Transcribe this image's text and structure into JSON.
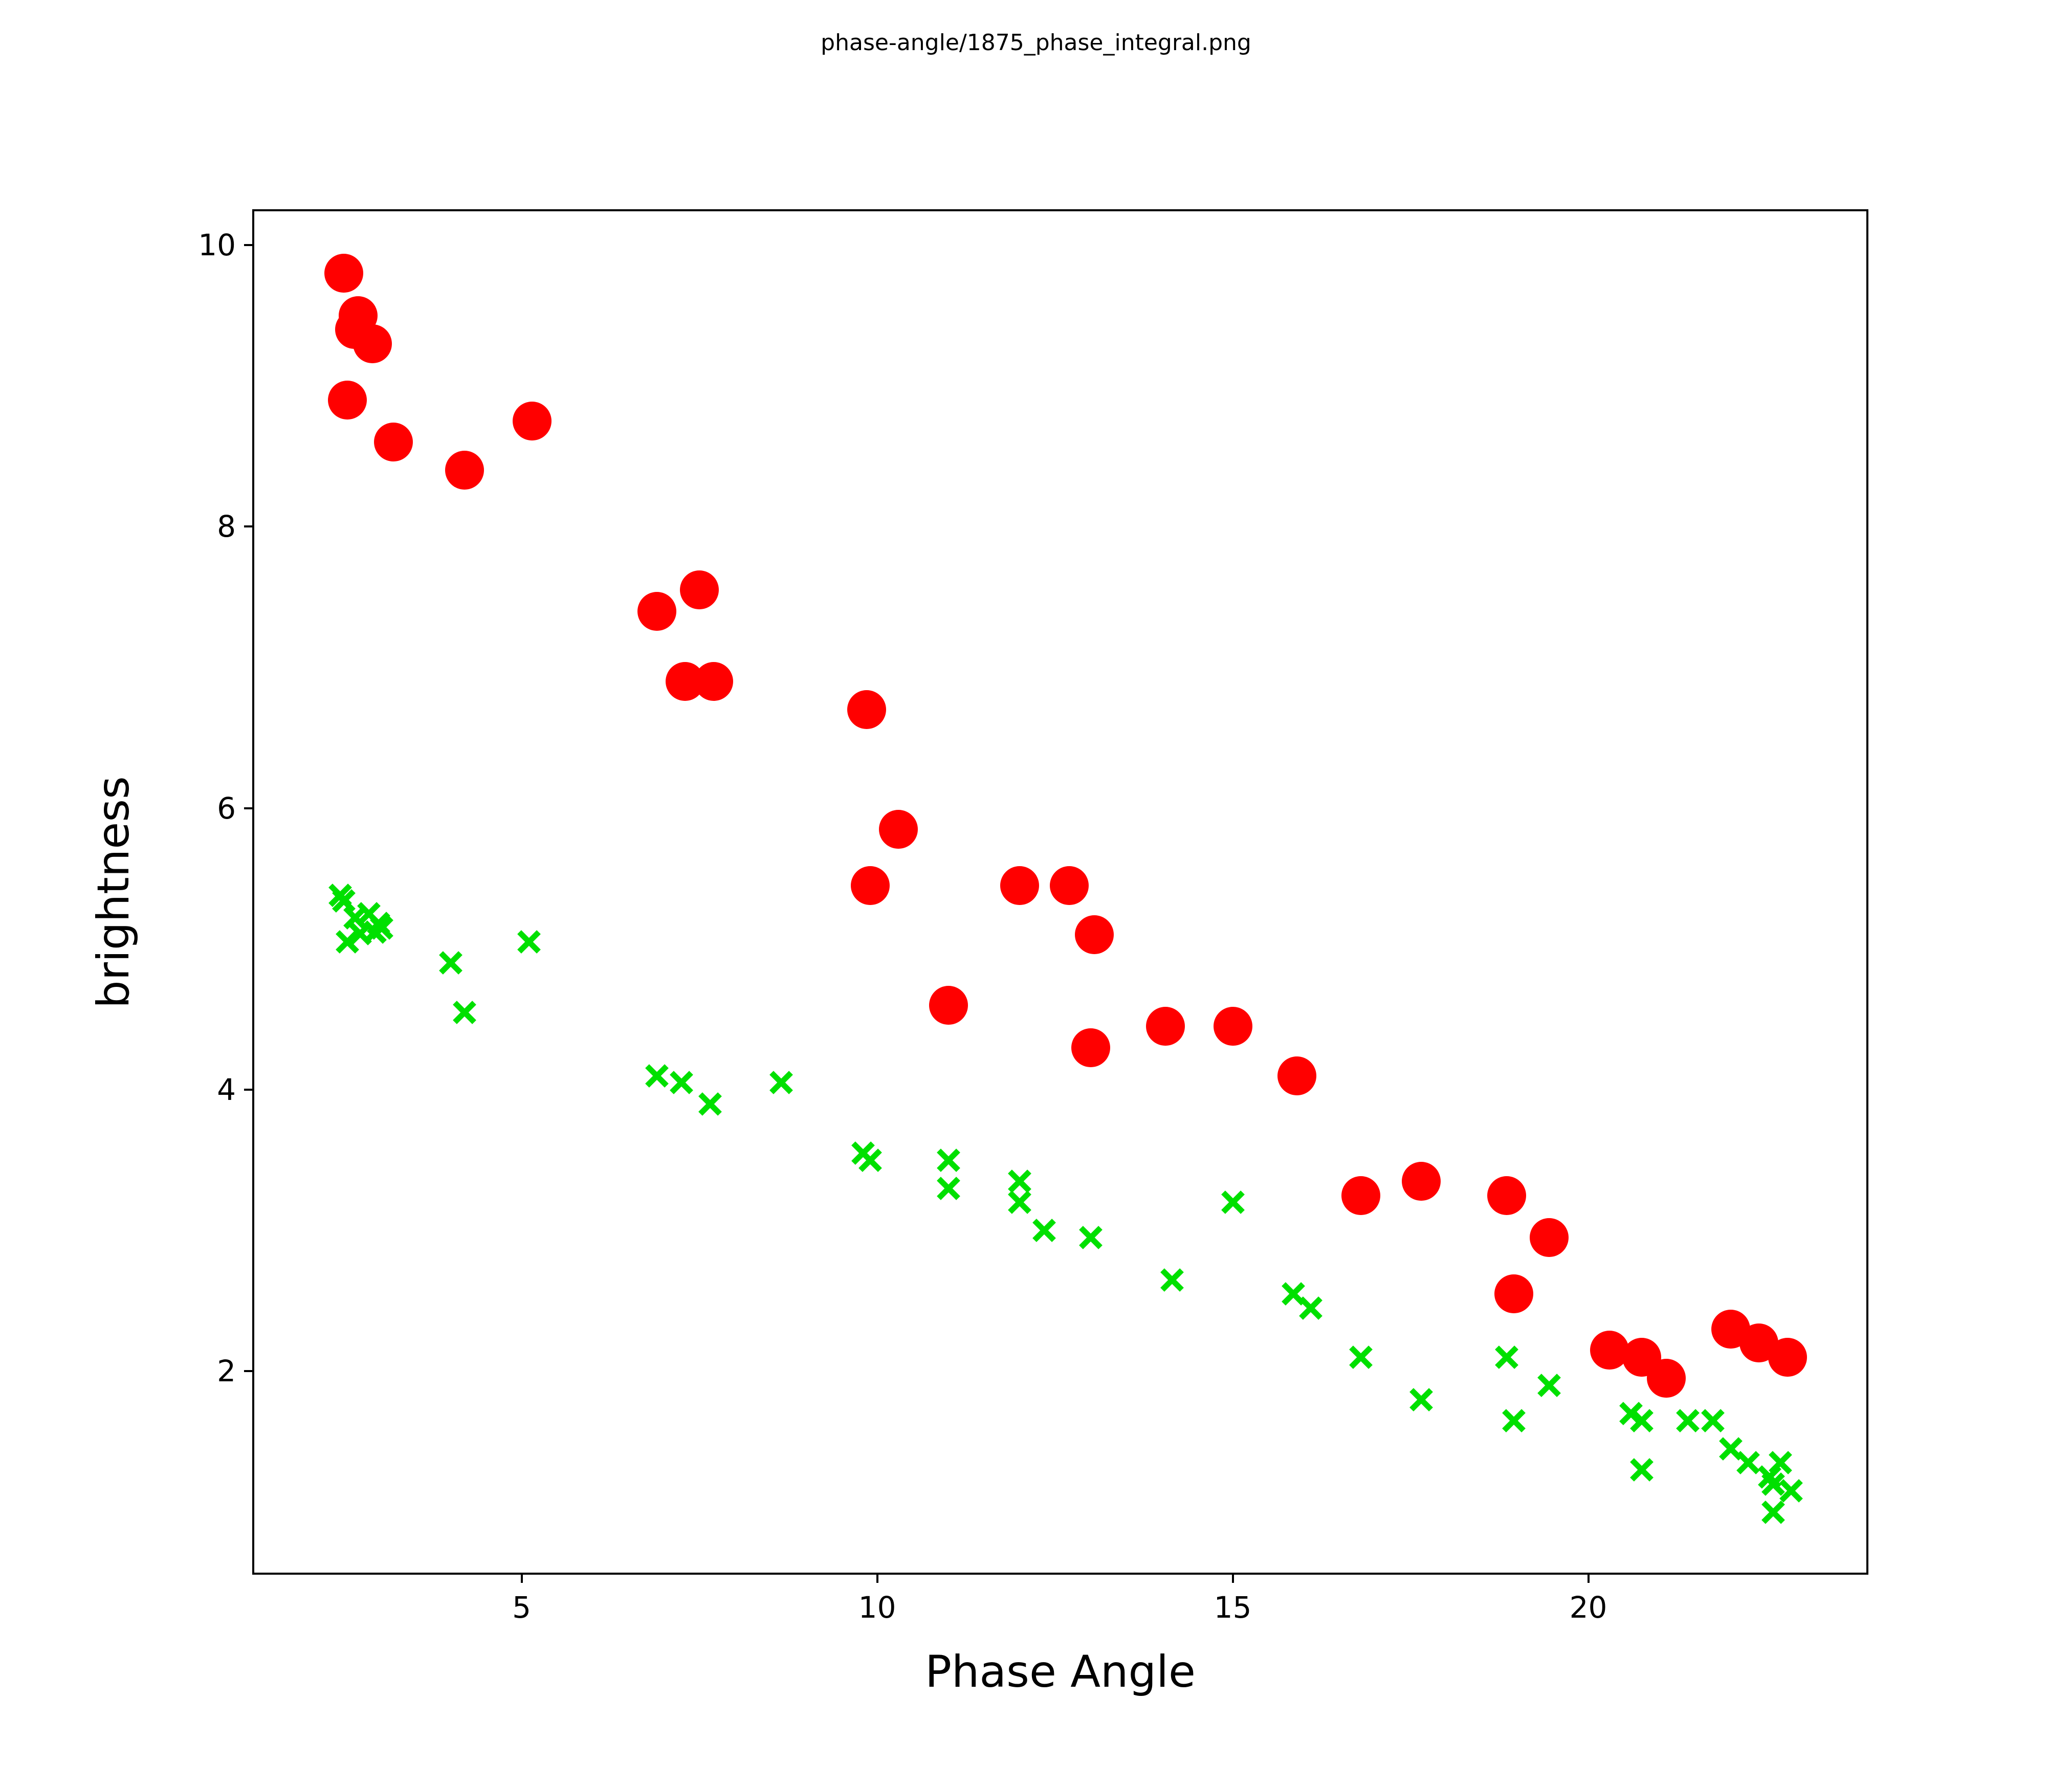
{
  "figure": {
    "title": "phase-angle/1875_phase_integral.png",
    "background_color": "#ffffff",
    "axis_color": "#000000"
  },
  "chart_data": {
    "type": "scatter",
    "title": "phase-angle/1875_phase_integral.png",
    "xlabel": "Phase Angle",
    "ylabel": "brightness",
    "xlim": [
      1.24,
      23.91
    ],
    "ylim": [
      0.57,
      10.24
    ],
    "x_ticks": [
      5,
      10,
      15,
      20
    ],
    "y_ticks": [
      2,
      4,
      6,
      8,
      10
    ],
    "grid": false,
    "legend_position": "none",
    "series": [
      {
        "name": "red-circles",
        "marker": "circle",
        "color": "#ff0000",
        "points": [
          [
            2.5,
            9.8
          ],
          [
            2.7,
            9.5
          ],
          [
            2.65,
            9.4
          ],
          [
            2.9,
            9.3
          ],
          [
            2.55,
            8.9
          ],
          [
            3.2,
            8.6
          ],
          [
            4.2,
            8.4
          ],
          [
            5.15,
            8.75
          ],
          [
            6.9,
            7.4
          ],
          [
            7.5,
            7.55
          ],
          [
            7.3,
            6.9
          ],
          [
            7.7,
            6.9
          ],
          [
            9.85,
            6.7
          ],
          [
            10.3,
            5.85
          ],
          [
            9.9,
            5.45
          ],
          [
            12.0,
            5.45
          ],
          [
            12.7,
            5.45
          ],
          [
            13.05,
            5.1
          ],
          [
            11.0,
            4.6
          ],
          [
            13.0,
            4.3
          ],
          [
            14.05,
            4.45
          ],
          [
            15.0,
            4.45
          ],
          [
            15.9,
            4.1
          ],
          [
            16.8,
            3.25
          ],
          [
            17.65,
            3.35
          ],
          [
            18.85,
            3.25
          ],
          [
            19.45,
            2.95
          ],
          [
            18.95,
            2.55
          ],
          [
            20.3,
            2.15
          ],
          [
            20.75,
            2.1
          ],
          [
            21.1,
            1.95
          ],
          [
            22.0,
            2.3
          ],
          [
            22.4,
            2.2
          ],
          [
            22.8,
            2.1
          ]
        ]
      },
      {
        "name": "green-x",
        "marker": "x",
        "color": "#00e000",
        "points": [
          [
            2.45,
            5.38
          ],
          [
            2.5,
            5.34
          ],
          [
            2.66,
            5.22
          ],
          [
            2.85,
            5.25
          ],
          [
            2.99,
            5.18
          ],
          [
            3.03,
            5.15
          ],
          [
            2.73,
            5.11
          ],
          [
            2.94,
            5.12
          ],
          [
            2.55,
            5.05
          ],
          [
            5.1,
            5.05
          ],
          [
            4.0,
            4.9
          ],
          [
            4.2,
            4.55
          ],
          [
            6.9,
            4.1
          ],
          [
            7.25,
            4.05
          ],
          [
            7.65,
            3.9
          ],
          [
            8.65,
            4.05
          ],
          [
            9.8,
            3.55
          ],
          [
            9.9,
            3.5
          ],
          [
            11.0,
            3.5
          ],
          [
            11.0,
            3.3
          ],
          [
            12.0,
            3.35
          ],
          [
            12.0,
            3.2
          ],
          [
            12.35,
            3.0
          ],
          [
            13.0,
            2.95
          ],
          [
            15.0,
            3.2
          ],
          [
            14.15,
            2.65
          ],
          [
            15.85,
            2.55
          ],
          [
            16.1,
            2.45
          ],
          [
            16.8,
            2.1
          ],
          [
            18.85,
            2.1
          ],
          [
            19.45,
            1.9
          ],
          [
            17.65,
            1.8
          ],
          [
            18.95,
            1.65
          ],
          [
            20.6,
            1.7
          ],
          [
            20.75,
            1.65
          ],
          [
            21.4,
            1.65
          ],
          [
            21.75,
            1.65
          ],
          [
            20.75,
            1.3
          ],
          [
            22.0,
            1.45
          ],
          [
            22.25,
            1.35
          ],
          [
            22.7,
            1.35
          ],
          [
            22.55,
            1.25
          ],
          [
            22.6,
            1.2
          ],
          [
            22.85,
            1.15
          ],
          [
            22.6,
            1.0
          ]
        ]
      }
    ]
  }
}
